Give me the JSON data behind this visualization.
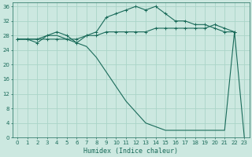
{
  "xlabel": "Humidex (Indice chaleur)",
  "background_color": "#cce8e0",
  "grid_color": "#aad4c8",
  "line_color": "#1a6b5a",
  "xlim": [
    -0.5,
    23.5
  ],
  "ylim": [
    0,
    37
  ],
  "xticks": [
    0,
    1,
    2,
    3,
    4,
    5,
    6,
    7,
    8,
    9,
    10,
    11,
    12,
    13,
    14,
    15,
    16,
    17,
    18,
    19,
    20,
    21,
    22,
    23
  ],
  "yticks": [
    0,
    4,
    8,
    12,
    16,
    20,
    24,
    28,
    32,
    36
  ],
  "series1_x": [
    0,
    1,
    2,
    3,
    4,
    5,
    6,
    7,
    8,
    9,
    10,
    11,
    12,
    13,
    14,
    15,
    16,
    17,
    18,
    19,
    20,
    21,
    22
  ],
  "series1_y": [
    27,
    27,
    26,
    28,
    29,
    28,
    26,
    28,
    29,
    33,
    34,
    35,
    36,
    35,
    36,
    34,
    32,
    32,
    31,
    31,
    30,
    29,
    29
  ],
  "series2_x": [
    0,
    1,
    2,
    3,
    4,
    5,
    6,
    7,
    8,
    9,
    10,
    11,
    12,
    13,
    14,
    15,
    16,
    17,
    18,
    19,
    20,
    21,
    22
  ],
  "series2_y": [
    27,
    27,
    27,
    27,
    27,
    27,
    27,
    28,
    28,
    29,
    29,
    29,
    29,
    29,
    30,
    30,
    30,
    30,
    30,
    30,
    31,
    30,
    29
  ],
  "series3_x": [
    0,
    1,
    2,
    3,
    4,
    5,
    6,
    7,
    8,
    9,
    10,
    11,
    12,
    13,
    14,
    15,
    16,
    17,
    18,
    19,
    20,
    21,
    22,
    23
  ],
  "series3_y": [
    27,
    27,
    27,
    28,
    28,
    27,
    26,
    25,
    22,
    18,
    14,
    10,
    7,
    4,
    3,
    2,
    2,
    2,
    2,
    2,
    2,
    2,
    29,
    0
  ]
}
